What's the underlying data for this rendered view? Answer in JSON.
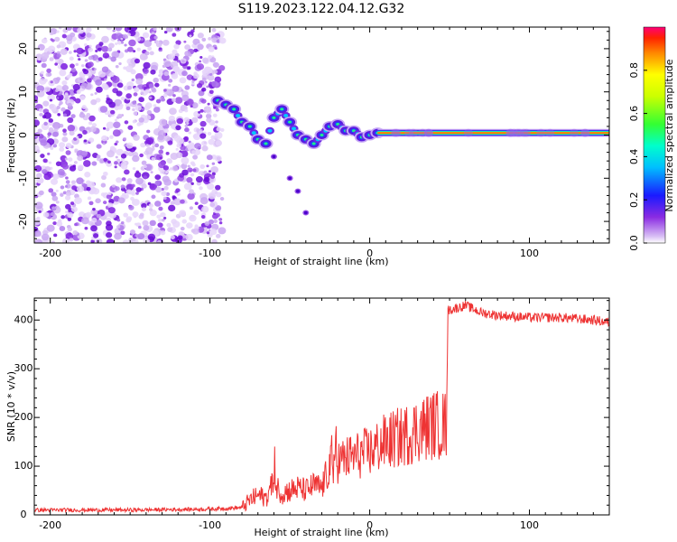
{
  "page_title": "S119.2023.122.04.12.G32",
  "colorbar_label": "Normalized spectral amplitude",
  "chart_data": [
    {
      "type": "heatmap",
      "title": "S119.2023.122.04.12.G32",
      "xlabel": "Height of straight line (km)",
      "ylabel": "Frequency (Hz)",
      "xlim": [
        -210,
        150
      ],
      "ylim": [
        -25,
        25
      ],
      "x_ticks": [
        -200,
        -100,
        0,
        100
      ],
      "y_ticks": [
        -20,
        -10,
        0,
        10,
        20
      ],
      "colorbar": {
        "label": "Normalized spectral amplitude",
        "range": [
          0,
          1
        ],
        "ticks": [
          0.0,
          0.2,
          0.4,
          0.6,
          0.8
        ]
      },
      "noise_region": {
        "x_range": [
          -210,
          -92
        ],
        "freq_range": [
          -25,
          25
        ],
        "amplitude": 0.25
      },
      "signal_track": [
        {
          "x": -95,
          "freq": 8
        },
        {
          "x": -90,
          "freq": 7
        },
        {
          "x": -85,
          "freq": 6
        },
        {
          "x": -80,
          "freq": 3
        },
        {
          "x": -75,
          "freq": 2
        },
        {
          "x": -70,
          "freq": -1
        },
        {
          "x": -65,
          "freq": -2
        },
        {
          "x": -60,
          "freq": 4
        },
        {
          "x": -55,
          "freq": 6
        },
        {
          "x": -50,
          "freq": 3
        },
        {
          "x": -45,
          "freq": 0
        },
        {
          "x": -40,
          "freq": -1
        },
        {
          "x": -35,
          "freq": -2
        },
        {
          "x": -30,
          "freq": 0
        },
        {
          "x": -25,
          "freq": 2
        },
        {
          "x": -20,
          "freq": 2.5
        },
        {
          "x": -15,
          "freq": 1
        },
        {
          "x": -10,
          "freq": 1
        },
        {
          "x": -5,
          "freq": -0.5
        },
        {
          "x": 0,
          "freq": 0
        },
        {
          "x": 5,
          "freq": 0.5
        },
        {
          "x": 50,
          "freq": 0.7
        },
        {
          "x": 100,
          "freq": 0.7
        },
        {
          "x": 150,
          "freq": 0.7
        }
      ],
      "weak_branch": [
        {
          "x": -60,
          "freq": -5
        },
        {
          "x": -50,
          "freq": -10
        },
        {
          "x": -45,
          "freq": -13
        },
        {
          "x": -40,
          "freq": -18
        }
      ]
    },
    {
      "type": "line",
      "xlabel": "Height of straight line (km)",
      "ylabel": "SNR (10 * v/v)",
      "xlim": [
        -210,
        150
      ],
      "ylim": [
        0,
        445
      ],
      "x_ticks": [
        -200,
        -100,
        0,
        100
      ],
      "y_ticks": [
        0,
        100,
        200,
        300,
        400
      ],
      "series": [
        {
          "name": "SNR",
          "color": "#ee3333",
          "x": [
            -210,
            -150,
            -100,
            -80,
            -75,
            -70,
            -65,
            -60,
            -55,
            -50,
            -45,
            -40,
            -35,
            -30,
            -25,
            -20,
            -15,
            -10,
            -5,
            0,
            10,
            20,
            30,
            40,
            48,
            49,
            55,
            60,
            70,
            80,
            100,
            120,
            140,
            150
          ],
          "values": [
            10,
            10,
            12,
            15,
            30,
            40,
            35,
            65,
            45,
            50,
            55,
            50,
            60,
            55,
            100,
            110,
            115,
            120,
            125,
            130,
            150,
            160,
            175,
            185,
            185,
            420,
            425,
            430,
            415,
            410,
            405,
            405,
            400,
            395
          ]
        }
      ]
    }
  ]
}
